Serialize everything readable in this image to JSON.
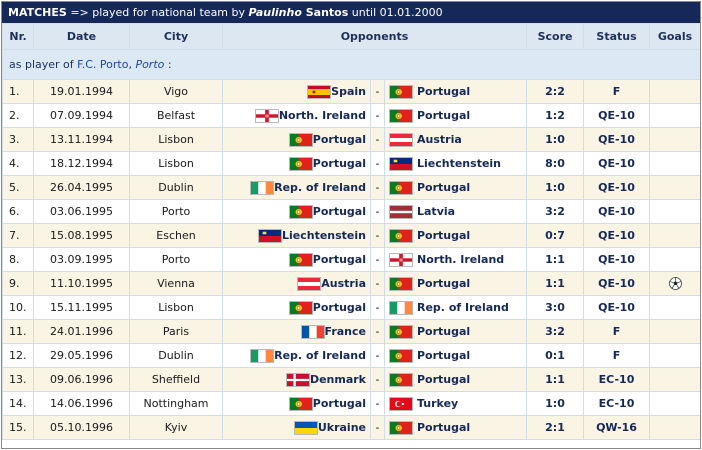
{
  "header": {
    "matches_label": "MATCHES",
    "pre_text": " => played for national team by ",
    "player_name": "Paulinho",
    "player_surname": " Santos",
    "post_text": " until 01.01.2000"
  },
  "columns": [
    "Nr.",
    "Date",
    "City",
    "Opponents",
    "Score",
    "Status",
    "Goals"
  ],
  "section": {
    "prefix": "as player of ",
    "club": "F.C. Porto",
    "sep": ", ",
    "city": "Porto",
    "suffix": " :"
  },
  "flags": {
    "Spain": "spain-flag-icon",
    "Portugal": "portugal-flag-icon",
    "North. Ireland": "northern-ireland-flag-icon",
    "Austria": "austria-flag-icon",
    "Liechtenstein": "liechtenstein-flag-icon",
    "Rep. of Ireland": "ireland-flag-icon",
    "Latvia": "latvia-flag-icon",
    "France": "france-flag-icon",
    "Denmark": "denmark-flag-icon",
    "Turkey": "turkey-flag-icon",
    "Ukraine": "ukraine-flag-icon"
  },
  "rows": [
    {
      "nr": "1.",
      "date": "19.01.1994",
      "city": "Vigo",
      "home": "Spain",
      "sep": "-",
      "away": "Portugal",
      "score": "2:2",
      "status": "F",
      "goals": ""
    },
    {
      "nr": "2.",
      "date": "07.09.1994",
      "city": "Belfast",
      "home": "North. Ireland",
      "sep": "-",
      "away": "Portugal",
      "score": "1:2",
      "status": "QE-10",
      "goals": ""
    },
    {
      "nr": "3.",
      "date": "13.11.1994",
      "city": "Lisbon",
      "home": "Portugal",
      "sep": "-",
      "away": "Austria",
      "score": "1:0",
      "status": "QE-10",
      "goals": ""
    },
    {
      "nr": "4.",
      "date": "18.12.1994",
      "city": "Lisbon",
      "home": "Portugal",
      "sep": "-",
      "away": "Liechtenstein",
      "score": "8:0",
      "status": "QE-10",
      "goals": ""
    },
    {
      "nr": "5.",
      "date": "26.04.1995",
      "city": "Dublin",
      "home": "Rep. of Ireland",
      "sep": "-",
      "away": "Portugal",
      "score": "1:0",
      "status": "QE-10",
      "goals": ""
    },
    {
      "nr": "6.",
      "date": "03.06.1995",
      "city": "Porto",
      "home": "Portugal",
      "sep": "-",
      "away": "Latvia",
      "score": "3:2",
      "status": "QE-10",
      "goals": ""
    },
    {
      "nr": "7.",
      "date": "15.08.1995",
      "city": "Eschen",
      "home": "Liechtenstein",
      "sep": "-",
      "away": "Portugal",
      "score": "0:7",
      "status": "QE-10",
      "goals": ""
    },
    {
      "nr": "8.",
      "date": "03.09.1995",
      "city": "Porto",
      "home": "Portugal",
      "sep": "-",
      "away": "North. Ireland",
      "score": "1:1",
      "status": "QE-10",
      "goals": ""
    },
    {
      "nr": "9.",
      "date": "11.10.1995",
      "city": "Vienna",
      "home": "Austria",
      "sep": "-",
      "away": "Portugal",
      "score": "1:1",
      "status": "QE-10",
      "goals": "football-icon"
    },
    {
      "nr": "10.",
      "date": "15.11.1995",
      "city": "Lisbon",
      "home": "Portugal",
      "sep": "-",
      "away": "Rep. of Ireland",
      "score": "3:0",
      "status": "QE-10",
      "goals": ""
    },
    {
      "nr": "11.",
      "date": "24.01.1996",
      "city": "Paris",
      "home": "France",
      "sep": "-",
      "away": "Portugal",
      "score": "3:2",
      "status": "F",
      "goals": ""
    },
    {
      "nr": "12.",
      "date": "29.05.1996",
      "city": "Dublin",
      "home": "Rep. of Ireland",
      "sep": "-",
      "away": "Portugal",
      "score": "0:1",
      "status": "F",
      "goals": ""
    },
    {
      "nr": "13.",
      "date": "09.06.1996",
      "city": "Sheffield",
      "home": "Denmark",
      "sep": "-",
      "away": "Portugal",
      "score": "1:1",
      "status": "EC-10",
      "goals": ""
    },
    {
      "nr": "14.",
      "date": "14.06.1996",
      "city": "Nottingham",
      "home": "Portugal",
      "sep": "-",
      "away": "Turkey",
      "score": "1:0",
      "status": "EC-10",
      "goals": ""
    },
    {
      "nr": "15.",
      "date": "05.10.1996",
      "city": "Kyiv",
      "home": "Ukraine",
      "sep": "-",
      "away": "Portugal",
      "score": "2:1",
      "status": "QW-16",
      "goals": ""
    }
  ]
}
